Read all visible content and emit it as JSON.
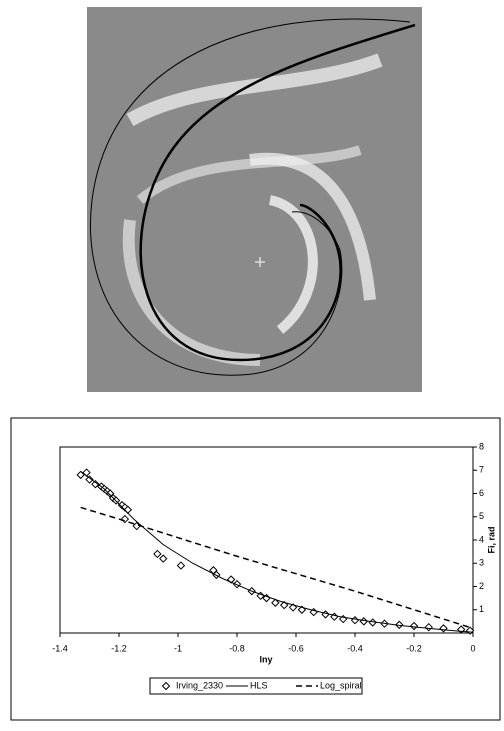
{
  "chart_data": {
    "type": "scatter-lines",
    "x_label": "lny",
    "y_label": "Fi, rad",
    "xlim": [
      -1.4,
      0
    ],
    "xticks": [
      -1.4,
      -1.2,
      -1,
      -0.8,
      -0.6,
      -0.4,
      -0.2,
      0
    ],
    "ylim": [
      0,
      8
    ],
    "yticks": [
      1,
      2,
      3,
      4,
      5,
      6,
      7,
      8
    ],
    "series": [
      {
        "name": "Irving_2330",
        "kind": "markers",
        "color": "#000000",
        "x": [
          -1.33,
          -1.31,
          -1.3,
          -1.28,
          -1.26,
          -1.25,
          -1.24,
          -1.23,
          -1.22,
          -1.21,
          -1.19,
          -1.18,
          -1.17,
          -1.18,
          -1.14,
          -1.07,
          -1.05,
          -0.99,
          -0.88,
          -0.87,
          -0.82,
          -0.8,
          -0.75,
          -0.72,
          -0.7,
          -0.67,
          -0.64,
          -0.61,
          -0.58,
          -0.54,
          -0.5,
          -0.47,
          -0.44,
          -0.4,
          -0.37,
          -0.34,
          -0.3,
          -0.25,
          -0.2,
          -0.15,
          -0.1,
          -0.04,
          -0.01
        ],
        "values": [
          6.8,
          6.9,
          6.6,
          6.4,
          6.3,
          6.2,
          6.1,
          6.0,
          5.8,
          5.7,
          5.5,
          5.4,
          5.3,
          4.9,
          4.6,
          3.4,
          3.2,
          2.9,
          2.7,
          2.5,
          2.3,
          2.1,
          1.8,
          1.6,
          1.5,
          1.3,
          1.2,
          1.1,
          1.0,
          0.9,
          0.8,
          0.7,
          0.6,
          0.55,
          0.5,
          0.45,
          0.4,
          0.35,
          0.3,
          0.25,
          0.2,
          0.15,
          0.1
        ]
      },
      {
        "name": "HLS",
        "kind": "solid",
        "color": "#000000",
        "x": [
          -1.33,
          -1.25,
          -1.15,
          -1.05,
          -0.95,
          -0.85,
          -0.75,
          -0.65,
          -0.55,
          -0.45,
          -0.35,
          -0.25,
          -0.15,
          -0.05,
          0
        ],
        "values": [
          6.95,
          6.2,
          4.9,
          3.8,
          3.0,
          2.35,
          1.8,
          1.35,
          1.0,
          0.7,
          0.5,
          0.33,
          0.2,
          0.08,
          0.03
        ]
      },
      {
        "name": "Log_spiral",
        "kind": "dashed",
        "color": "#000000",
        "x": [
          -1.33,
          -1.2,
          -1,
          -0.8,
          -0.6,
          -0.4,
          -0.2,
          0
        ],
        "values": [
          5.4,
          4.9,
          4.1,
          3.3,
          2.55,
          1.8,
          1.0,
          0.2
        ]
      }
    ]
  }
}
